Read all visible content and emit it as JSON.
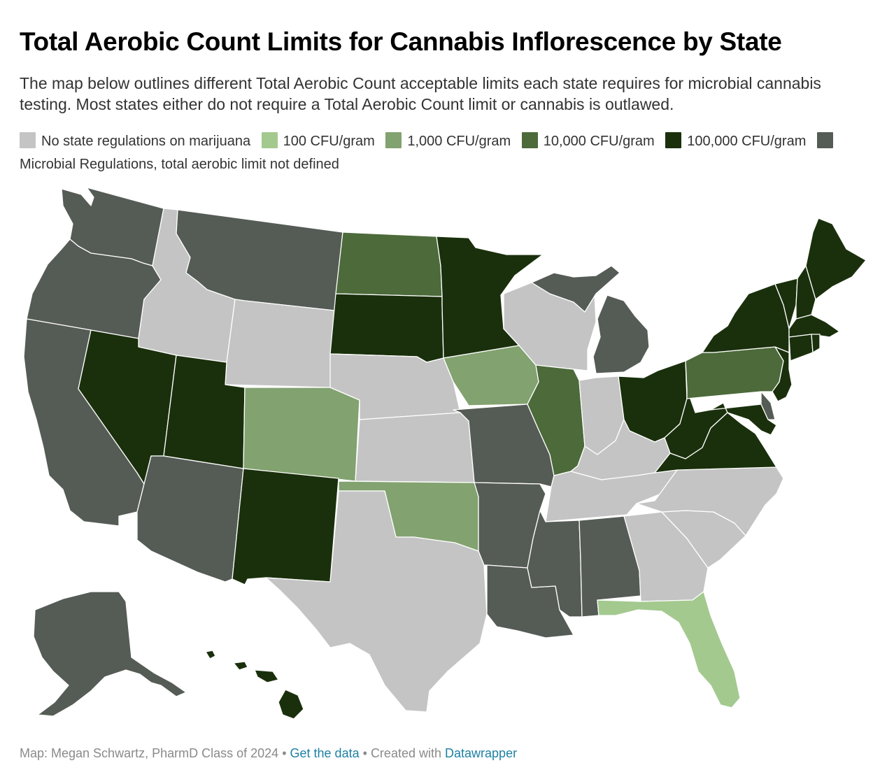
{
  "title": "Total Aerobic Count Limits for Cannabis Inflorescence by State",
  "subtitle": "The map below outlines different Total Aerobic Count acceptable limits each state requires for microbial cannabis testing. Most states either do not require a Total Aerobic Count limit or cannabis is outlawed.",
  "legend": [
    {
      "label": "No state regulations on marijuana",
      "color": "#c4c4c4",
      "key": "none"
    },
    {
      "label": "100 CFU/gram",
      "color": "#a3c98f",
      "key": "c100"
    },
    {
      "label": "1,000 CFU/gram",
      "color": "#82a26f",
      "key": "c1000"
    },
    {
      "label": "10,000 CFU/gram",
      "color": "#4c6a3a",
      "key": "c10000"
    },
    {
      "label": "100,000 CFU/gram",
      "color": "#1a300c",
      "key": "c100000"
    },
    {
      "label": "Microbial Regulations, total aerobic limit not defined",
      "color": "#555b55",
      "key": "undef"
    }
  ],
  "states": {
    "WA": "undef",
    "OR": "undef",
    "CA": "undef",
    "ID": "none",
    "NV": "c100000",
    "MT": "undef",
    "WY": "none",
    "UT": "c100000",
    "AZ": "undef",
    "CO": "c1000",
    "NM": "c100000",
    "ND": "c10000",
    "SD": "c100000",
    "NE": "none",
    "KS": "none",
    "OK": "c1000",
    "TX": "none",
    "MN": "c100000",
    "IA": "c1000",
    "MO": "undef",
    "AR": "undef",
    "LA": "undef",
    "WI": "none",
    "IL": "c10000",
    "MI": "undef",
    "IN": "none",
    "OH": "c100000",
    "KY": "none",
    "TN": "none",
    "MS": "undef",
    "AL": "undef",
    "GA": "none",
    "FL": "c100",
    "SC": "none",
    "NC": "none",
    "VA": "c100000",
    "WV": "c100000",
    "PA": "c10000",
    "NY": "c100000",
    "NJ": "c100000",
    "DE": "undef",
    "MD": "c100000",
    "CT": "c100000",
    "RI": "c100000",
    "MA": "c100000",
    "VT": "c100000",
    "NH": "c100000",
    "ME": "c100000",
    "AK": "undef",
    "HI": "c100000"
  },
  "footer": {
    "credit": "Map: Megan Schwartz, PharmD Class of 2024",
    "separator": "•",
    "data_link": "Get the data",
    "created_with": "Created with",
    "tool_link": "Datawrapper"
  }
}
